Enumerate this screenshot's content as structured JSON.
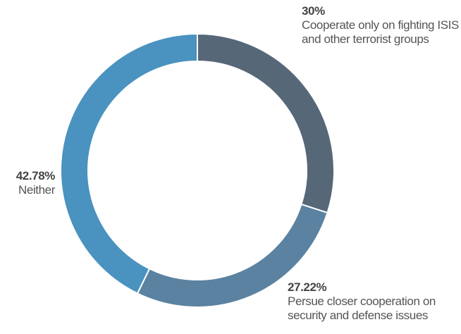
{
  "chart_data": {
    "type": "donut",
    "categories": [
      "Cooperate only on fighting ISIS and other terrorist groups",
      "Persue closer cooperation on security and defense issues",
      "Neither"
    ],
    "values": [
      30,
      27.22,
      42.78
    ],
    "value_labels": [
      "30%",
      "27.22%",
      "42.78%"
    ],
    "colors": [
      "#566778",
      "#5b82a0",
      "#4a92bf"
    ]
  }
}
